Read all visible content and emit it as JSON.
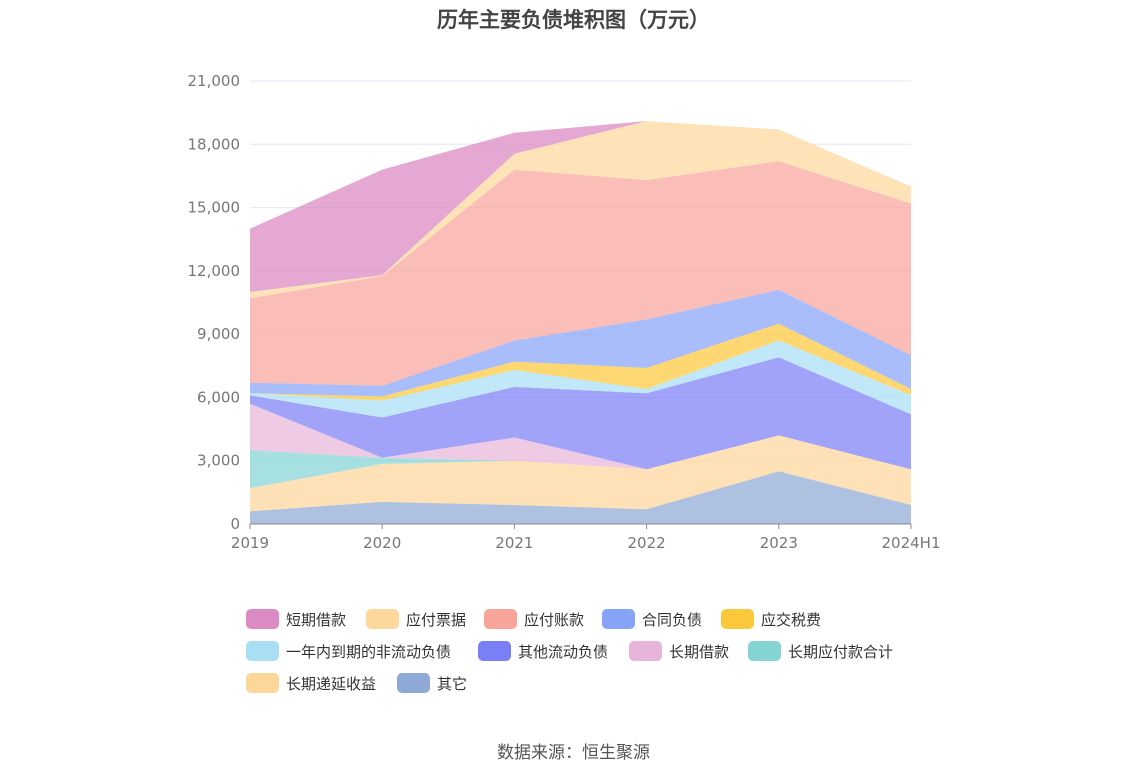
{
  "chart_data": {
    "type": "area",
    "stacked": true,
    "title": "历年主要负债堆积图（万元）",
    "categories": [
      "2019",
      "2020",
      "2021",
      "2022",
      "2023",
      "2024H1"
    ],
    "ylim": [
      0,
      21000
    ],
    "yticks": [
      "0",
      "3,000",
      "6,000",
      "9,000",
      "12,000",
      "15,000",
      "18,000",
      "21,000"
    ],
    "grid": true,
    "legend_position": "bottom",
    "series": [
      {
        "name": "其它",
        "color": "#8fa9d6",
        "values": [
          600,
          1050,
          900,
          700,
          2500,
          900
        ]
      },
      {
        "name": "长期递延收益",
        "color": "#fdd69a",
        "values": [
          1100,
          1800,
          2100,
          1900,
          1700,
          1700
        ]
      },
      {
        "name": "长期应付款合计",
        "color": "#84d4d4",
        "values": [
          1800,
          300,
          0,
          0,
          0,
          0
        ]
      },
      {
        "name": "长期借款",
        "color": "#e7b5da",
        "values": [
          2200,
          0,
          1100,
          0,
          0,
          0
        ]
      },
      {
        "name": "其他流动负债",
        "color": "#7b7ff5",
        "values": [
          400,
          1900,
          2400,
          3600,
          3700,
          2600
        ]
      },
      {
        "name": "一年内到期的非流动负债",
        "color": "#a8dff5",
        "values": [
          100,
          800,
          800,
          200,
          800,
          900
        ]
      },
      {
        "name": "应交税费",
        "color": "#fbc83c",
        "values": [
          0,
          200,
          400,
          1000,
          800,
          300
        ]
      },
      {
        "name": "合同负债",
        "color": "#86a3f8",
        "values": [
          500,
          500,
          1000,
          2300,
          1600,
          1600
        ]
      },
      {
        "name": "应付账款",
        "color": "#f9a49b",
        "values": [
          4000,
          5200,
          8100,
          6600,
          6100,
          7200
        ]
      },
      {
        "name": "应付票据",
        "color": "#fdd89c",
        "values": [
          300,
          50,
          750,
          2800,
          1500,
          800
        ]
      },
      {
        "name": "短期借款",
        "color": "#d986c2",
        "values": [
          3000,
          5000,
          1000,
          0,
          0,
          0
        ]
      }
    ]
  },
  "legend": [
    {
      "label": "短期借款",
      "color": "#dc8ac4"
    },
    {
      "label": "应付票据",
      "color": "#fdd89c"
    },
    {
      "label": "应付账款",
      "color": "#f9a49b"
    },
    {
      "label": "合同负债",
      "color": "#86a3f8"
    },
    {
      "label": "应交税费",
      "color": "#fbc83c"
    },
    {
      "label": "一年内到期的非流动负债",
      "color": "#a8dff5"
    },
    {
      "label": "其他流动负债",
      "color": "#7b7ff5"
    },
    {
      "label": "长期借款",
      "color": "#e7b5da"
    },
    {
      "label": "长期应付款合计",
      "color": "#84d4d4"
    },
    {
      "label": "长期递延收益",
      "color": "#fdd69a"
    },
    {
      "label": "其它",
      "color": "#8fa9d6"
    }
  ],
  "source": "数据来源：恒生聚源"
}
